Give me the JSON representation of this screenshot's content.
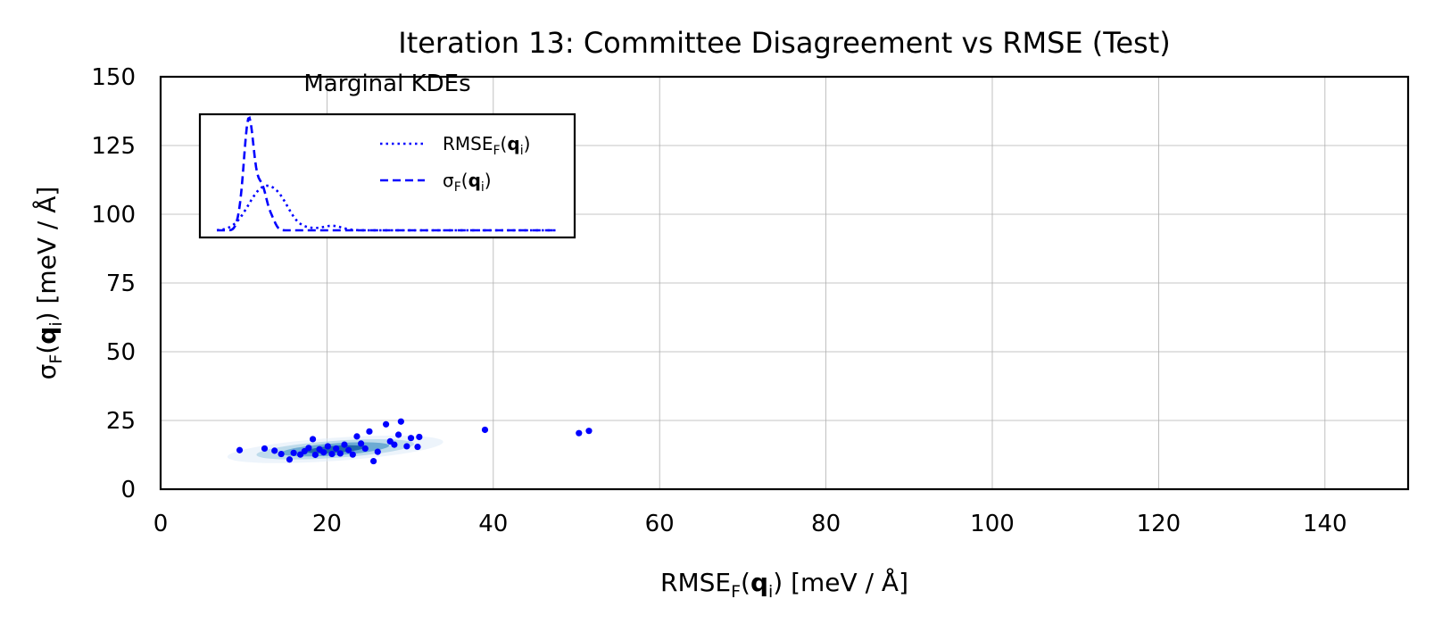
{
  "chart_data": {
    "type": "scatter",
    "title": "Iteration 13: Committee Disagreement vs RMSE (Test)",
    "xlabel": {
      "pre": "RMSE",
      "sub": "F",
      "mid": "(",
      "bold": "q",
      "sub2": "i",
      "post": ") [meV / Å]"
    },
    "ylabel": {
      "pre": "σ",
      "sub": "F",
      "mid": "(",
      "bold": "q",
      "sub2": "i",
      "post": ") [meV / Å]"
    },
    "xlim": [
      0,
      150
    ],
    "ylim": [
      0,
      150
    ],
    "xticks": [
      0,
      20,
      40,
      60,
      80,
      100,
      120,
      140
    ],
    "yticks": [
      0,
      25,
      50,
      75,
      100,
      125,
      150
    ],
    "xtick_labels": [
      "0",
      "20",
      "40",
      "60",
      "80",
      "100",
      "120",
      "140"
    ],
    "ytick_labels": [
      "0",
      "25",
      "50",
      "75",
      "100",
      "125",
      "150"
    ],
    "grid": true,
    "point_color": "#0000ff",
    "series": [
      {
        "values": [
          [
            9.5,
            14.2
          ],
          [
            12.5,
            14.8
          ],
          [
            13.7,
            14.0
          ],
          [
            14.5,
            12.8
          ],
          [
            15.5,
            10.8
          ],
          [
            16.0,
            13.2
          ],
          [
            16.8,
            12.6
          ],
          [
            17.3,
            13.8
          ],
          [
            17.8,
            15.0
          ],
          [
            18.3,
            18.2
          ],
          [
            18.6,
            12.5
          ],
          [
            19.1,
            14.5
          ],
          [
            19.6,
            13.4
          ],
          [
            20.1,
            15.6
          ],
          [
            20.6,
            12.8
          ],
          [
            21.1,
            14.8
          ],
          [
            21.6,
            13.0
          ],
          [
            22.1,
            16.2
          ],
          [
            22.6,
            14.2
          ],
          [
            23.1,
            12.6
          ],
          [
            23.6,
            19.2
          ],
          [
            24.1,
            16.6
          ],
          [
            24.6,
            14.8
          ],
          [
            25.1,
            21.0
          ],
          [
            25.6,
            10.2
          ],
          [
            26.1,
            13.6
          ],
          [
            27.1,
            23.6
          ],
          [
            27.6,
            17.4
          ],
          [
            28.1,
            16.2
          ],
          [
            28.6,
            19.8
          ],
          [
            28.9,
            24.6
          ],
          [
            29.6,
            15.6
          ],
          [
            30.1,
            18.6
          ],
          [
            30.9,
            15.4
          ],
          [
            31.1,
            19.0
          ],
          [
            39.0,
            21.6
          ],
          [
            50.3,
            20.4
          ],
          [
            51.5,
            21.2
          ]
        ]
      }
    ],
    "density_contours": {
      "colors": [
        "#deebf7",
        "#9ecae1",
        "#4292c6",
        "#08519c"
      ],
      "center": [
        21,
        14.5
      ]
    },
    "inset": {
      "title": "Marginal KDEs",
      "legend": [
        {
          "style": "dotted",
          "label": {
            "pre": "RMSE",
            "sub": "F",
            "mid": "(",
            "bold": "q",
            "sub2": "i",
            "post": ")"
          }
        },
        {
          "style": "dashed",
          "label": {
            "pre": "σ",
            "sub": "F",
            "mid": "(",
            "bold": "q",
            "sub2": "i",
            "post": ")"
          }
        }
      ],
      "line_color": "#0000ff"
    }
  }
}
